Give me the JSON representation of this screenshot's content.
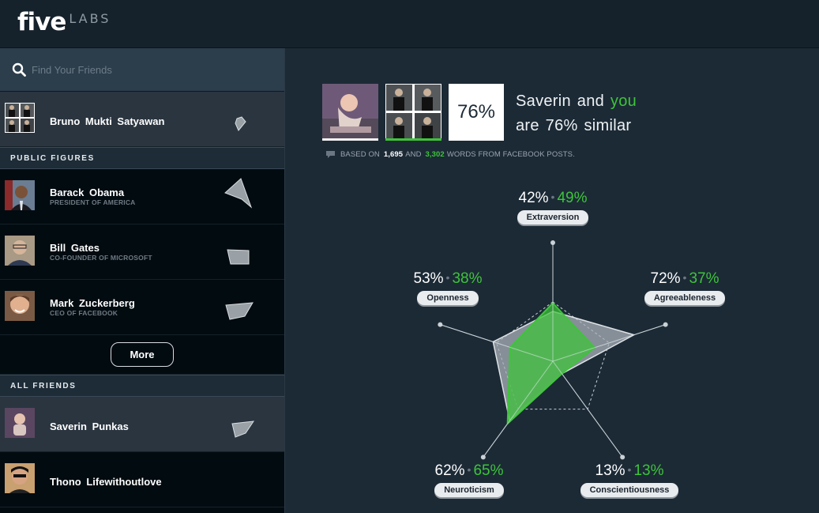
{
  "header": {
    "logo_five": "five",
    "logo_labs": "LABS"
  },
  "sidebar": {
    "search_placeholder": "Find Your Friends",
    "current_user": {
      "name": "Bruno Mukti Satyawan"
    },
    "public_figures_title": "PUBLIC FIGURES",
    "public_figures": [
      {
        "name": "Barack Obama",
        "subtitle": "PRESIDENT OF AMERICA"
      },
      {
        "name": "Bill Gates",
        "subtitle": "CO-FOUNDER OF MICROSOFT"
      },
      {
        "name": "Mark Zuckerberg",
        "subtitle": "CEO OF FACEBOOK"
      }
    ],
    "more_label": "More",
    "all_friends_title": "ALL FRIENDS",
    "friends": [
      {
        "name": "Saverin Punkas"
      },
      {
        "name": "Thono Lifewithoutlove"
      }
    ]
  },
  "comparison": {
    "score": "76%",
    "line1_name": "Saverin",
    "line1_and": "and",
    "line1_you": "you",
    "line2": "are 76% similar",
    "based_prefix": "BASED ON",
    "words_them": "1,695",
    "based_and": "AND",
    "words_you": "3,302",
    "based_suffix": "WORDS FROM FACEBOOK POSTS."
  },
  "traits": [
    {
      "name": "Extraversion",
      "them": "42%",
      "you": "49%",
      "them_value": 42,
      "you_value": 49
    },
    {
      "name": "Agreeableness",
      "them": "72%",
      "you": "37%",
      "them_value": 72,
      "you_value": 37
    },
    {
      "name": "Conscientiousness",
      "them": "13%",
      "you": "13%",
      "them_value": 13,
      "you_value": 13
    },
    {
      "name": "Neuroticism",
      "them": "62%",
      "you": "65%",
      "them_value": 62,
      "you_value": 65
    },
    {
      "name": "Openness",
      "them": "53%",
      "you": "38%",
      "them_value": 53,
      "you_value": 38
    }
  ],
  "colors": {
    "accent_green": "#3ec43a",
    "bg_main": "#1c2a36",
    "bg_sidebar": "#020b10"
  }
}
